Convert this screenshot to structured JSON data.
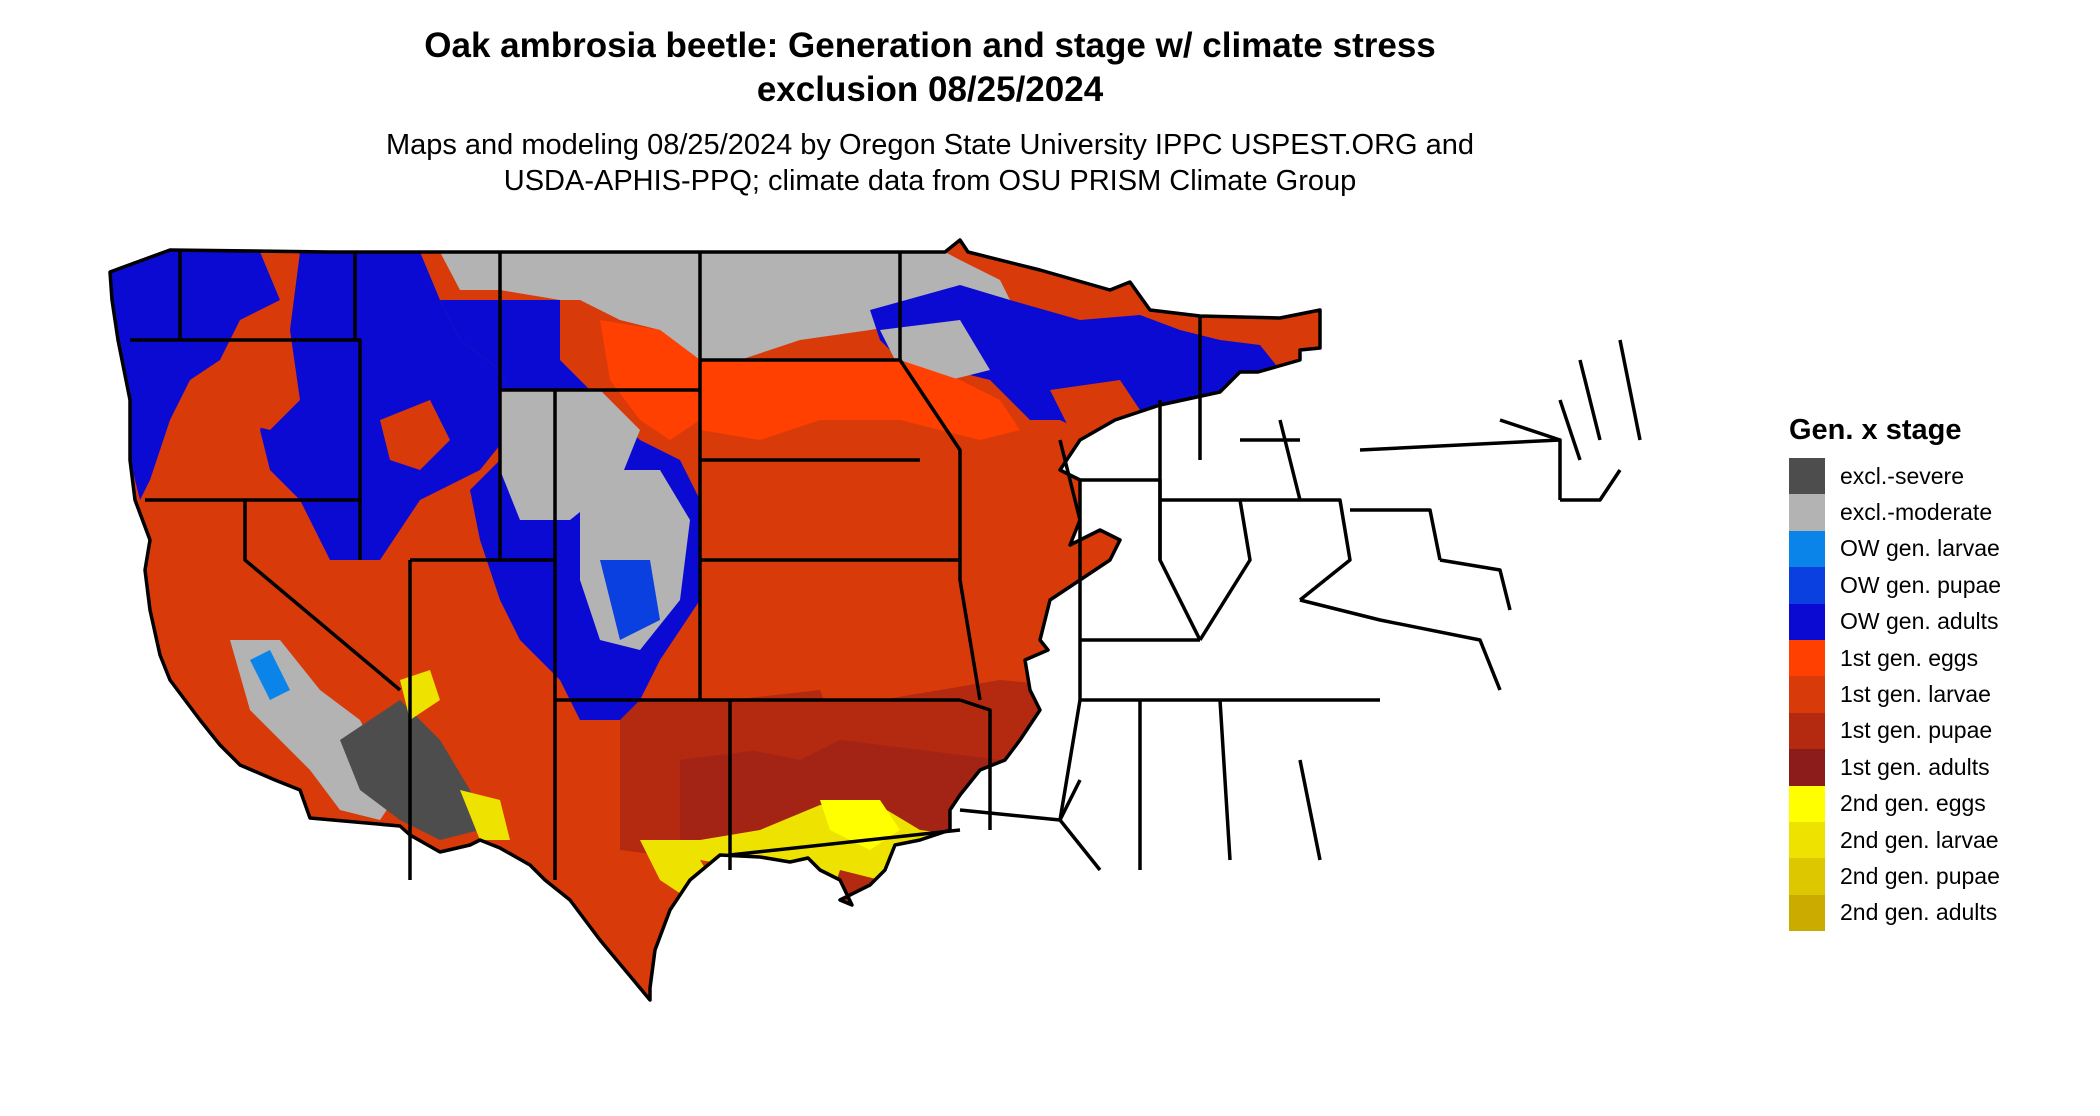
{
  "title": {
    "line1": "Oak ambrosia beetle: Generation and stage w/ climate stress",
    "line2": "exclusion 08/25/2024"
  },
  "subtitle": {
    "line1": "Maps and modeling 08/25/2024 by Oregon State University IPPC USPEST.ORG and",
    "line2": "USDA-APHIS-PPQ; climate data from OSU PRISM Climate Group"
  },
  "legend": {
    "title": "Gen. x stage",
    "items": [
      {
        "label": "excl.-severe",
        "color": "#4d4d4d"
      },
      {
        "label": "excl.-moderate",
        "color": "#b3b3b3"
      },
      {
        "label": "OW gen. larvae",
        "color": "#0a84e8"
      },
      {
        "label": "OW gen. pupae",
        "color": "#0a3fe0"
      },
      {
        "label": "OW gen. adults",
        "color": "#0a0ad2"
      },
      {
        "label": "1st gen. eggs",
        "color": "#ff4000"
      },
      {
        "label": "1st gen. larvae",
        "color": "#d93a0a"
      },
      {
        "label": "1st gen. pupae",
        "color": "#b32a10"
      },
      {
        "label": "1st gen. adults",
        "color": "#8c1c1c"
      },
      {
        "label": "2nd gen. eggs",
        "color": "#ffff00"
      },
      {
        "label": "2nd gen. larvae",
        "color": "#eee200"
      },
      {
        "label": "2nd gen. pupae",
        "color": "#ddc700"
      },
      {
        "label": "2nd gen. adults",
        "color": "#ccab00"
      }
    ]
  }
}
